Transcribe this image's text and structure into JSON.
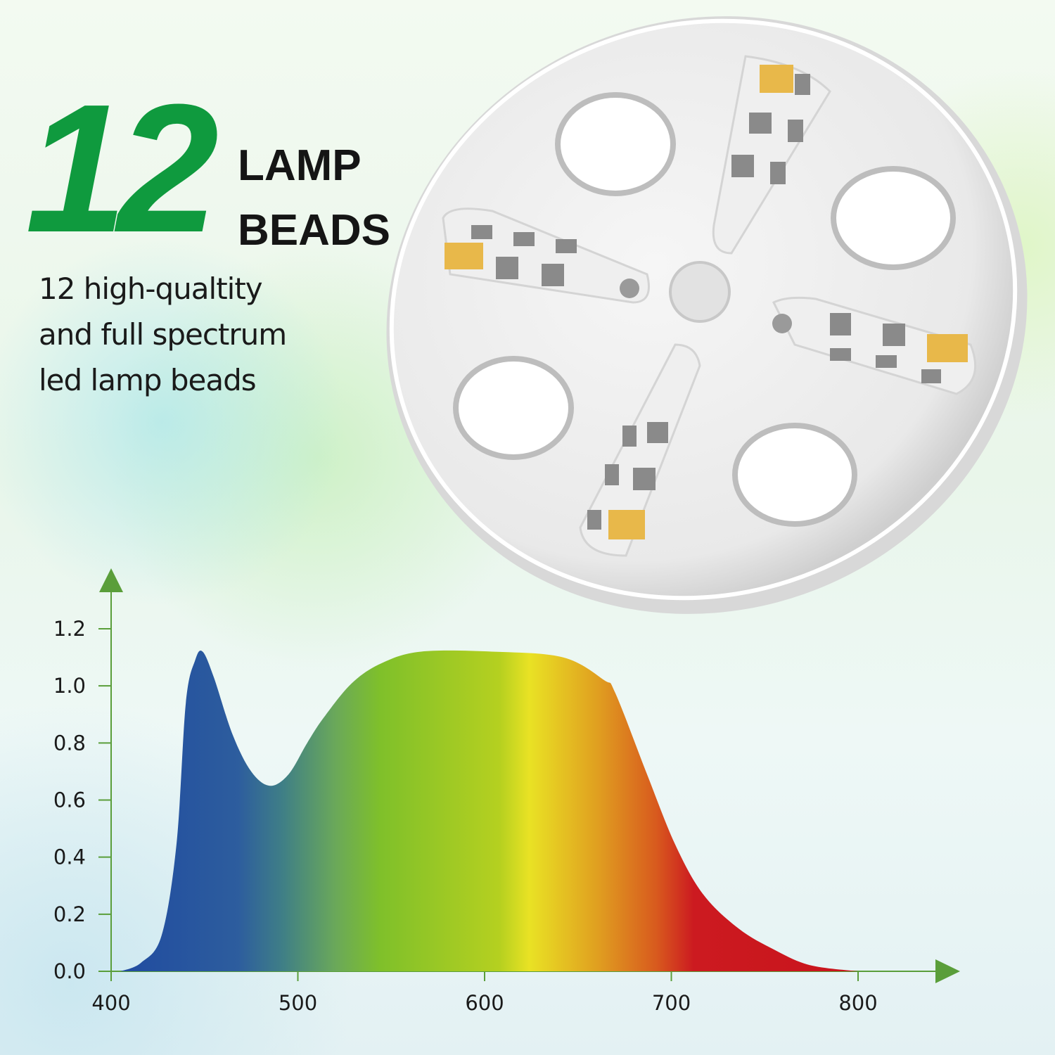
{
  "headline": {
    "number": "12",
    "line1": "LAMP",
    "line2": "BEADS"
  },
  "description": [
    "12 high-qualtity",
    "and full spectrum",
    "led lamp beads"
  ],
  "colors": {
    "brand_green": "#0f9a3e",
    "axis_green": "#5a9e3a",
    "bead_amber": "#e8b84a"
  },
  "chart_data": {
    "type": "area",
    "title": "",
    "xlabel": "",
    "ylabel": "",
    "xlim": [
      400,
      800
    ],
    "ylim": [
      0,
      1.2
    ],
    "x_ticks": [
      "400",
      "500",
      "600",
      "700",
      "800"
    ],
    "y_ticks": [
      "0.0",
      "0.2",
      "0.4",
      "0.6",
      "0.8",
      "1.0",
      "1.2"
    ],
    "grid": false,
    "fill": "visible-spectrum gradient",
    "x": [
      405,
      416,
      427,
      435,
      440,
      445,
      449,
      455,
      465,
      475,
      485,
      495,
      505,
      514,
      529,
      545,
      566,
      604,
      642,
      664,
      670,
      687,
      702,
      717,
      736,
      755,
      774,
      800
    ],
    "y": [
      0,
      0.03,
      0.125,
      0.445,
      0.94,
      1.09,
      1.12,
      1.03,
      0.83,
      0.7,
      0.65,
      0.69,
      0.8,
      0.89,
      1.01,
      1.08,
      1.12,
      1.12,
      1.1,
      1.02,
      0.975,
      0.69,
      0.445,
      0.27,
      0.15,
      0.076,
      0.022,
      0
    ]
  }
}
